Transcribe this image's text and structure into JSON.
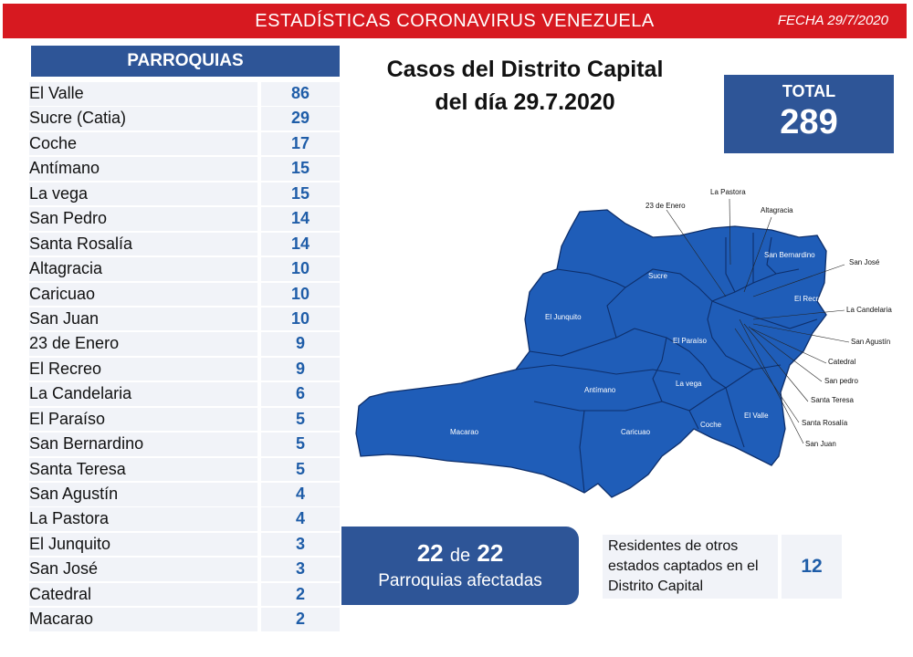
{
  "banner": {
    "title": "ESTADÍSTICAS CORONAVIRUS VENEZUELA",
    "date": "FECHA 29/7/2020",
    "color": "#d71920"
  },
  "table": {
    "header": "PARROQUIAS",
    "rows": [
      {
        "name": "El Valle",
        "value": "86"
      },
      {
        "name": "Sucre (Catia)",
        "value": "29"
      },
      {
        "name": "Coche",
        "value": "17"
      },
      {
        "name": "Antímano",
        "value": "15"
      },
      {
        "name": "La vega",
        "value": "15"
      },
      {
        "name": "San Pedro",
        "value": "14"
      },
      {
        "name": "Santa Rosalía",
        "value": "14"
      },
      {
        "name": "Altagracia",
        "value": "10"
      },
      {
        "name": "Caricuao",
        "value": "10"
      },
      {
        "name": "San Juan",
        "value": "10"
      },
      {
        "name": "23 de Enero",
        "value": "9"
      },
      {
        "name": "El Recreo",
        "value": "9"
      },
      {
        "name": "La Candelaria",
        "value": "6"
      },
      {
        "name": "El Paraíso",
        "value": "5"
      },
      {
        "name": "San Bernardino",
        "value": "5"
      },
      {
        "name": "Santa Teresa",
        "value": "5"
      },
      {
        "name": "San Agustín",
        "value": "4"
      },
      {
        "name": "La Pastora",
        "value": "4"
      },
      {
        "name": "El Junquito",
        "value": "3"
      },
      {
        "name": "San José",
        "value": "3"
      },
      {
        "name": "Catedral",
        "value": "2"
      },
      {
        "name": "Macarao",
        "value": "2"
      }
    ]
  },
  "title": {
    "line1": "Casos del Distrito Capital",
    "line2": "del día 29.7.2020"
  },
  "total": {
    "label": "TOTAL",
    "value": "289"
  },
  "affected": {
    "count": "22",
    "connector": "de",
    "total": "22",
    "label": "Parroquias afectadas"
  },
  "residents": {
    "text": "Residentes de otros estados captados en el Distrito Capital",
    "value": "12"
  },
  "map": {
    "fill": "#1f5db8",
    "inner_labels": [
      "El Junquito",
      "Sucre",
      "Antímano",
      "Macarao",
      "Caricuao",
      "La vega",
      "Coche",
      "El Valle",
      "El Paraíso",
      "San Bernardino",
      "El Recreo"
    ],
    "outer_labels": [
      "La Pastora",
      "23 de Enero",
      "Altagracia",
      "San José",
      "La Candelaria",
      "San Agustín",
      "Catedral",
      "San pedro",
      "Santa Teresa",
      "Santa Rosalía",
      "San Juan"
    ]
  }
}
